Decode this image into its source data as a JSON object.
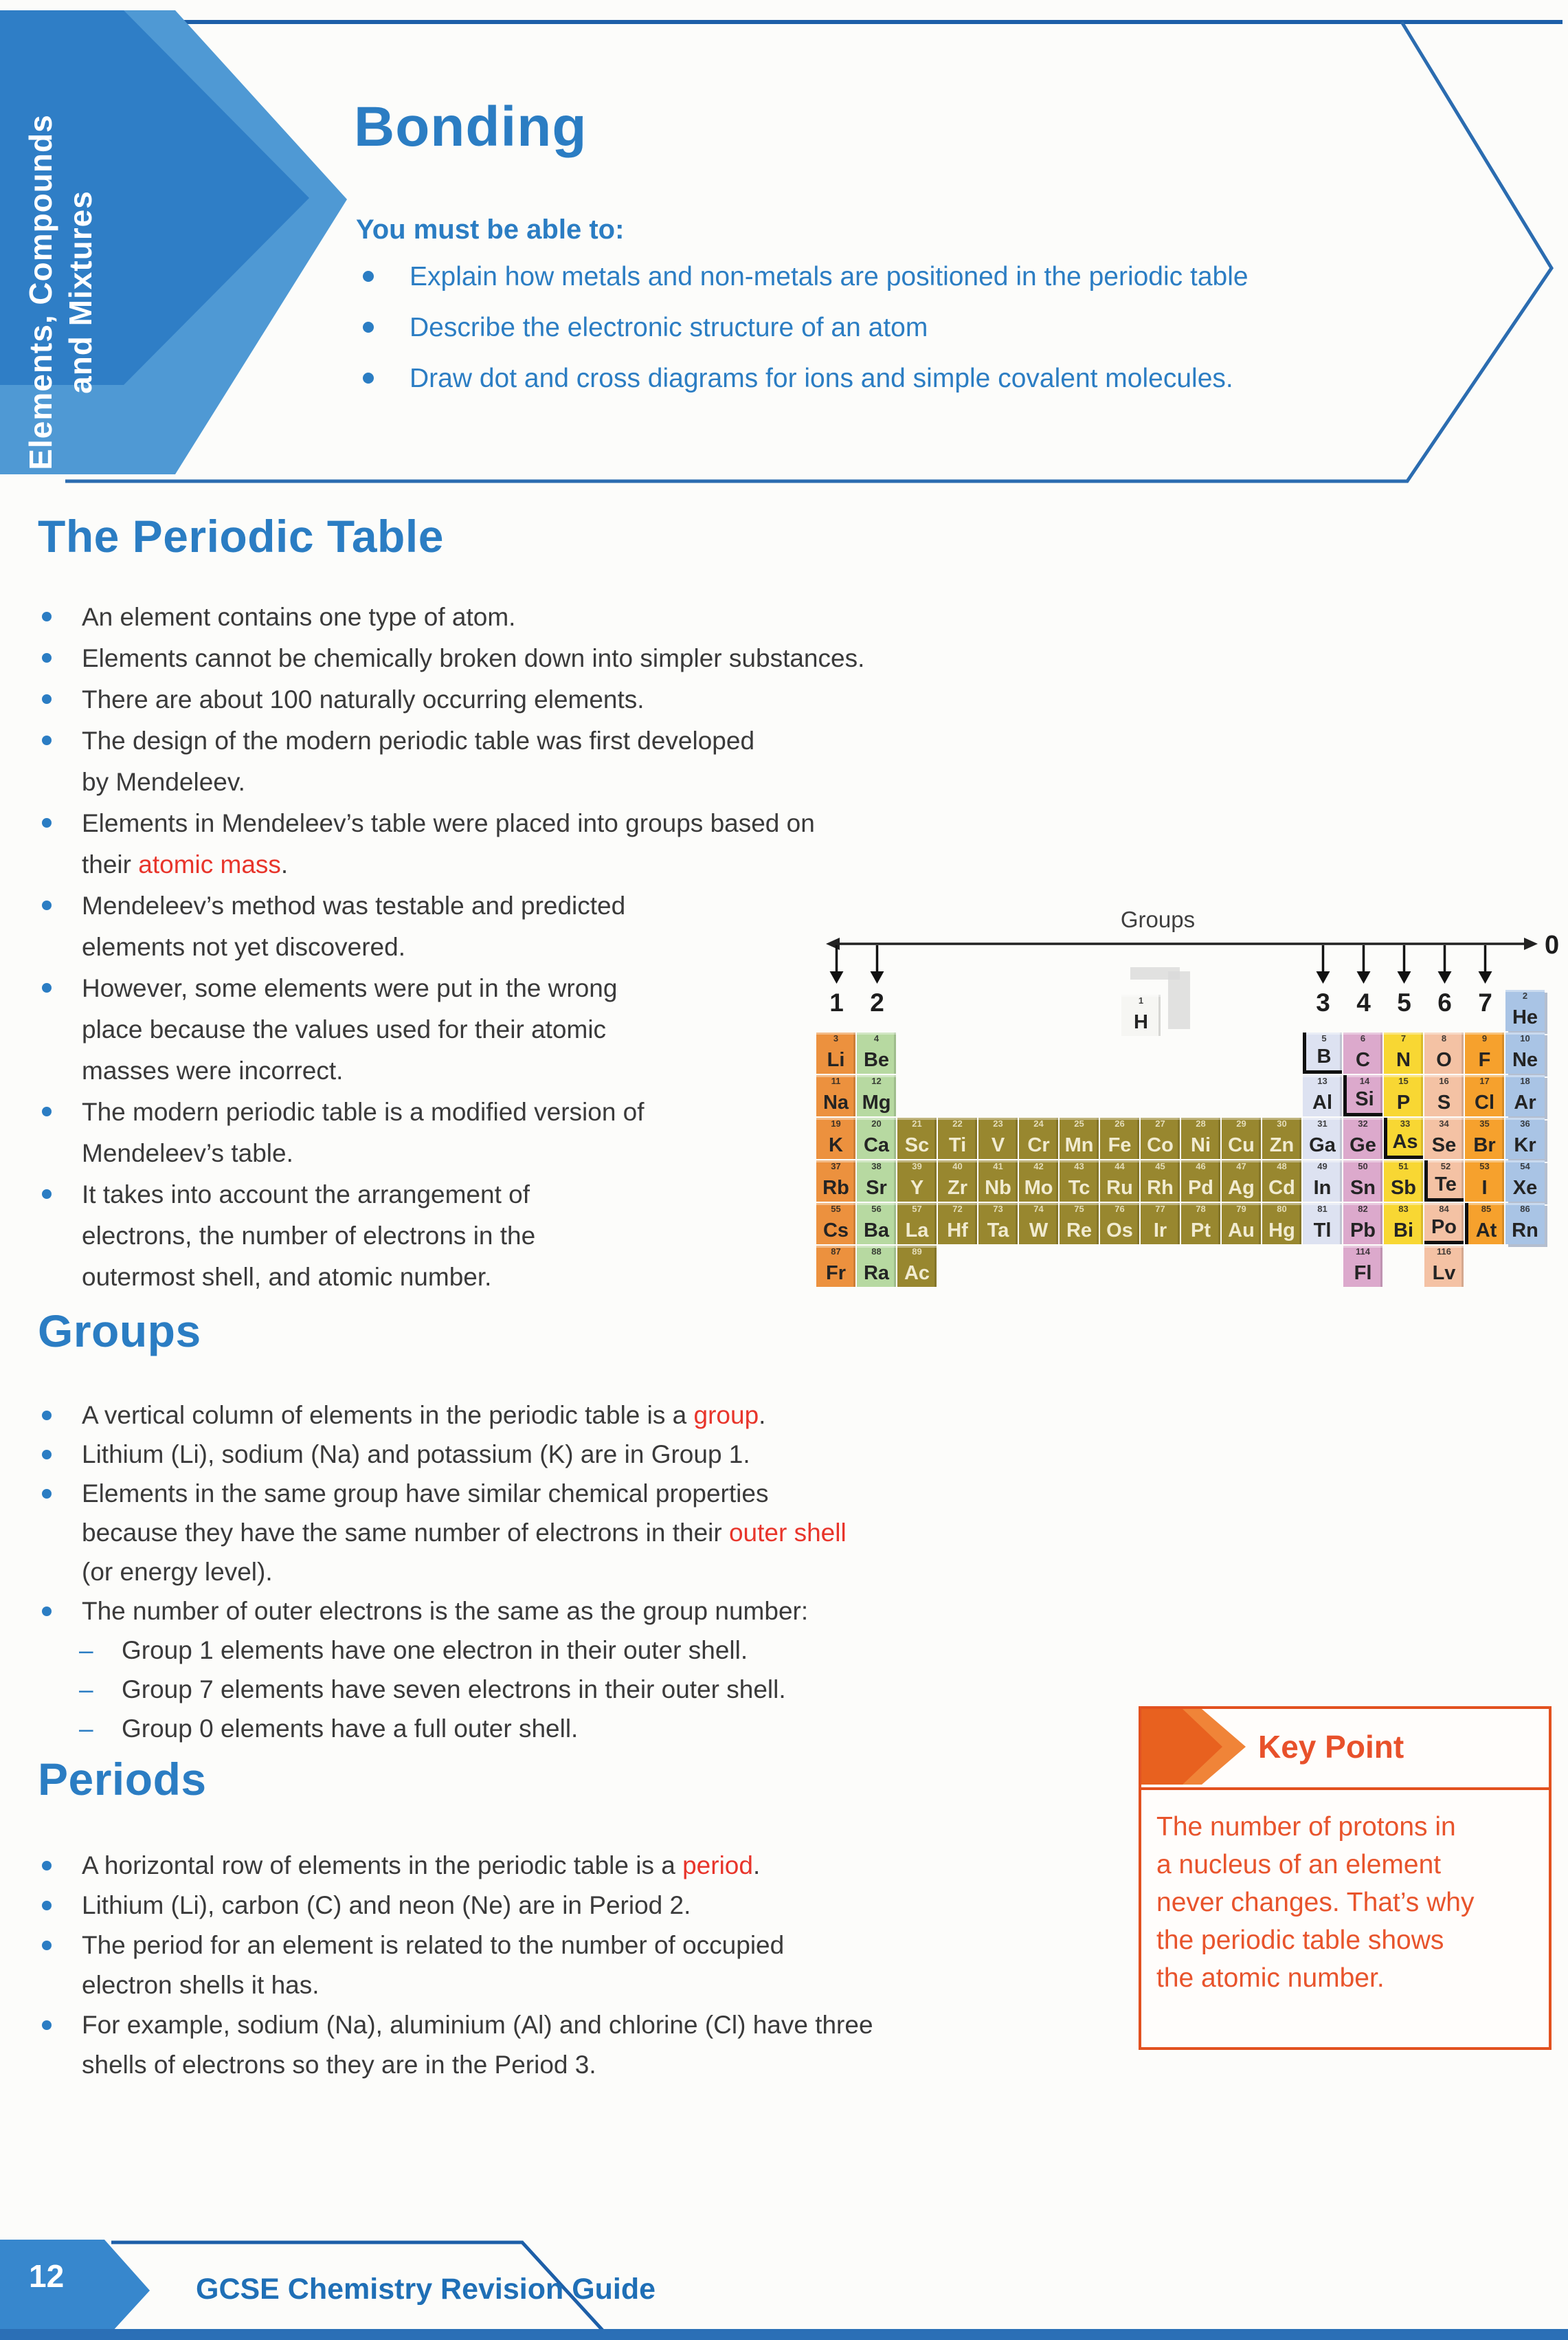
{
  "sidebar": {
    "title_line1": "Elements, Compounds",
    "title_line2": "and Mixtures"
  },
  "header": {
    "title": "Bonding",
    "lead": "You must be able to:",
    "objectives": [
      "Explain how metals and non-metals are positioned in the periodic table",
      "Describe the electronic structure of an atom",
      "Draw dot and cross diagrams for ions and simple covalent molecules."
    ]
  },
  "sections": {
    "periodic_table": {
      "heading": "The Periodic Table",
      "bullets": [
        {
          "m": "dot",
          "segs": [
            {
              "t": "An element contains one type of atom."
            }
          ]
        },
        {
          "m": "dot",
          "segs": [
            {
              "t": "Elements cannot be chemically broken down into simpler substances."
            }
          ]
        },
        {
          "m": "dot",
          "segs": [
            {
              "t": "There are about 100 naturally occurring elements."
            }
          ]
        },
        {
          "m": "dot",
          "segs": [
            {
              "t": "The design of the modern periodic table was first developed"
            },
            {
              "br": true
            },
            {
              "t": "by Mendeleev."
            }
          ]
        },
        {
          "m": "dot",
          "segs": [
            {
              "t": "Elements in Mendeleev’s table were placed into groups based on"
            },
            {
              "br": true
            },
            {
              "t": "their "
            },
            {
              "t": "atomic mass",
              "red": true
            },
            {
              "t": "."
            }
          ]
        },
        {
          "m": "dot",
          "segs": [
            {
              "t": "Mendeleev’s method was testable and predicted"
            },
            {
              "br": true
            },
            {
              "t": "elements not yet discovered."
            }
          ]
        },
        {
          "m": "dot",
          "segs": [
            {
              "t": "However, some elements were put in the wrong"
            },
            {
              "br": true
            },
            {
              "t": "place because the values used for their atomic"
            },
            {
              "br": true
            },
            {
              "t": "masses were incorrect."
            }
          ]
        },
        {
          "m": "dot",
          "segs": [
            {
              "t": "The modern periodic table is a modified version of"
            },
            {
              "br": true
            },
            {
              "t": "Mendeleev’s table."
            }
          ]
        },
        {
          "m": "dot",
          "segs": [
            {
              "t": "It takes into account the arrangement of"
            },
            {
              "br": true
            },
            {
              "t": "electrons, the number of electrons in the"
            },
            {
              "br": true
            },
            {
              "t": "outermost shell, and atomic number."
            }
          ]
        }
      ]
    },
    "groups": {
      "heading": "Groups",
      "bullets": [
        {
          "m": "dot",
          "segs": [
            {
              "t": "A vertical column of elements in the periodic table is a "
            },
            {
              "t": "group",
              "red": true
            },
            {
              "t": "."
            }
          ]
        },
        {
          "m": "dot",
          "segs": [
            {
              "t": "Lithium (Li), sodium (Na) and potassium (K) are in Group 1."
            }
          ]
        },
        {
          "m": "dot",
          "segs": [
            {
              "t": "Elements in the same group have similar chemical properties"
            },
            {
              "br": true
            },
            {
              "t": "because they have the same number of electrons in their "
            },
            {
              "t": "outer shell",
              "red": true
            },
            {
              "br": true
            },
            {
              "t": "(or energy level)."
            }
          ]
        },
        {
          "m": "dot",
          "segs": [
            {
              "t": "The number of outer electrons is the same as the group number:"
            }
          ]
        },
        {
          "m": "dash",
          "segs": [
            {
              "t": "Group 1 elements have one electron in their outer shell."
            }
          ]
        },
        {
          "m": "dash",
          "segs": [
            {
              "t": "Group 7 elements have seven electrons in their outer shell."
            }
          ]
        },
        {
          "m": "dash",
          "segs": [
            {
              "t": "Group 0 elements have a full outer shell."
            }
          ]
        }
      ]
    },
    "periods": {
      "heading": "Periods",
      "bullets": [
        {
          "m": "dot",
          "segs": [
            {
              "t": "A horizontal row of elements in the periodic table is a "
            },
            {
              "t": "period",
              "red": true
            },
            {
              "t": "."
            }
          ]
        },
        {
          "m": "dot",
          "segs": [
            {
              "t": "Lithium (Li), carbon (C) and neon (Ne) are in Period 2."
            }
          ]
        },
        {
          "m": "dot",
          "segs": [
            {
              "t": "The period for an element is related to the number of occupied"
            },
            {
              "br": true
            },
            {
              "t": "electron shells it has."
            }
          ]
        },
        {
          "m": "dot",
          "segs": [
            {
              "t": "For example, sodium (Na), aluminium (Al) and chlorine (Cl) have three"
            },
            {
              "br": true
            },
            {
              "t": "shells of electrons so they are in the Period 3."
            }
          ]
        }
      ]
    }
  },
  "key_point": {
    "title": "Key Point",
    "lines": [
      "The number of protons in",
      "a nucleus of an element",
      "never changes. That’s why",
      "the periodic table shows",
      "the atomic number."
    ]
  },
  "footer": {
    "page_number": "12",
    "book_title": "GCSE Chemistry Revision Guide"
  },
  "diagram": {
    "groups_label": "Groups",
    "group_numbers": [
      "1",
      "2",
      "3",
      "4",
      "5",
      "6",
      "7"
    ],
    "group_columns": [
      1,
      2,
      13,
      14,
      15,
      16,
      17
    ],
    "zero_label": "0",
    "colors": {
      "g1": "#ec913e",
      "g2": "#b7d9a1",
      "tm": "#98872f",
      "g13": "#dde2f1",
      "g14": "#dca9cc",
      "g15": "#f8d733",
      "g16": "#f4c2a4",
      "g17": "#f6a12d",
      "g18": "#a9c4e5",
      "h": "#f6f6f3"
    },
    "hydrogen": {
      "symbol": "H",
      "number": "1"
    },
    "elements": [
      {
        "s": "He",
        "n": "2",
        "r": 1,
        "c": 18,
        "g": "g18"
      },
      {
        "s": "Li",
        "n": "3",
        "r": 2,
        "c": 1,
        "g": "g1"
      },
      {
        "s": "Be",
        "n": "4",
        "r": 2,
        "c": 2,
        "g": "g2"
      },
      {
        "s": "B",
        "n": "5",
        "r": 2,
        "c": 13,
        "g": "g13",
        "st": [
          "l",
          "b"
        ]
      },
      {
        "s": "C",
        "n": "6",
        "r": 2,
        "c": 14,
        "g": "g14"
      },
      {
        "s": "N",
        "n": "7",
        "r": 2,
        "c": 15,
        "g": "g15"
      },
      {
        "s": "O",
        "n": "8",
        "r": 2,
        "c": 16,
        "g": "g16"
      },
      {
        "s": "F",
        "n": "9",
        "r": 2,
        "c": 17,
        "g": "g17"
      },
      {
        "s": "Ne",
        "n": "10",
        "r": 2,
        "c": 18,
        "g": "g18"
      },
      {
        "s": "Na",
        "n": "11",
        "r": 3,
        "c": 1,
        "g": "g1"
      },
      {
        "s": "Mg",
        "n": "12",
        "r": 3,
        "c": 2,
        "g": "g2"
      },
      {
        "s": "Al",
        "n": "13",
        "r": 3,
        "c": 13,
        "g": "g13"
      },
      {
        "s": "Si",
        "n": "14",
        "r": 3,
        "c": 14,
        "g": "g14",
        "st": [
          "l",
          "b"
        ]
      },
      {
        "s": "P",
        "n": "15",
        "r": 3,
        "c": 15,
        "g": "g15"
      },
      {
        "s": "S",
        "n": "16",
        "r": 3,
        "c": 16,
        "g": "g16"
      },
      {
        "s": "Cl",
        "n": "17",
        "r": 3,
        "c": 17,
        "g": "g17"
      },
      {
        "s": "Ar",
        "n": "18",
        "r": 3,
        "c": 18,
        "g": "g18"
      },
      {
        "s": "K",
        "n": "19",
        "r": 4,
        "c": 1,
        "g": "g1"
      },
      {
        "s": "Ca",
        "n": "20",
        "r": 4,
        "c": 2,
        "g": "g2"
      },
      {
        "s": "Sc",
        "n": "21",
        "r": 4,
        "c": 3,
        "g": "tm"
      },
      {
        "s": "Ti",
        "n": "22",
        "r": 4,
        "c": 4,
        "g": "tm"
      },
      {
        "s": "V",
        "n": "23",
        "r": 4,
        "c": 5,
        "g": "tm"
      },
      {
        "s": "Cr",
        "n": "24",
        "r": 4,
        "c": 6,
        "g": "tm"
      },
      {
        "s": "Mn",
        "n": "25",
        "r": 4,
        "c": 7,
        "g": "tm"
      },
      {
        "s": "Fe",
        "n": "26",
        "r": 4,
        "c": 8,
        "g": "tm"
      },
      {
        "s": "Co",
        "n": "27",
        "r": 4,
        "c": 9,
        "g": "tm"
      },
      {
        "s": "Ni",
        "n": "28",
        "r": 4,
        "c": 10,
        "g": "tm"
      },
      {
        "s": "Cu",
        "n": "29",
        "r": 4,
        "c": 11,
        "g": "tm"
      },
      {
        "s": "Zn",
        "n": "30",
        "r": 4,
        "c": 12,
        "g": "tm"
      },
      {
        "s": "Ga",
        "n": "31",
        "r": 4,
        "c": 13,
        "g": "g13"
      },
      {
        "s": "Ge",
        "n": "32",
        "r": 4,
        "c": 14,
        "g": "g14"
      },
      {
        "s": "As",
        "n": "33",
        "r": 4,
        "c": 15,
        "g": "g15",
        "st": [
          "l",
          "b"
        ]
      },
      {
        "s": "Se",
        "n": "34",
        "r": 4,
        "c": 16,
        "g": "g16"
      },
      {
        "s": "Br",
        "n": "35",
        "r": 4,
        "c": 17,
        "g": "g17"
      },
      {
        "s": "Kr",
        "n": "36",
        "r": 4,
        "c": 18,
        "g": "g18"
      },
      {
        "s": "Rb",
        "n": "37",
        "r": 5,
        "c": 1,
        "g": "g1"
      },
      {
        "s": "Sr",
        "n": "38",
        "r": 5,
        "c": 2,
        "g": "g2"
      },
      {
        "s": "Y",
        "n": "39",
        "r": 5,
        "c": 3,
        "g": "tm"
      },
      {
        "s": "Zr",
        "n": "40",
        "r": 5,
        "c": 4,
        "g": "tm"
      },
      {
        "s": "Nb",
        "n": "41",
        "r": 5,
        "c": 5,
        "g": "tm"
      },
      {
        "s": "Mo",
        "n": "42",
        "r": 5,
        "c": 6,
        "g": "tm"
      },
      {
        "s": "Tc",
        "n": "43",
        "r": 5,
        "c": 7,
        "g": "tm"
      },
      {
        "s": "Ru",
        "n": "44",
        "r": 5,
        "c": 8,
        "g": "tm"
      },
      {
        "s": "Rh",
        "n": "45",
        "r": 5,
        "c": 9,
        "g": "tm"
      },
      {
        "s": "Pd",
        "n": "46",
        "r": 5,
        "c": 10,
        "g": "tm"
      },
      {
        "s": "Ag",
        "n": "47",
        "r": 5,
        "c": 11,
        "g": "tm"
      },
      {
        "s": "Cd",
        "n": "48",
        "r": 5,
        "c": 12,
        "g": "tm"
      },
      {
        "s": "In",
        "n": "49",
        "r": 5,
        "c": 13,
        "g": "g13"
      },
      {
        "s": "Sn",
        "n": "50",
        "r": 5,
        "c": 14,
        "g": "g14"
      },
      {
        "s": "Sb",
        "n": "51",
        "r": 5,
        "c": 15,
        "g": "g15"
      },
      {
        "s": "Te",
        "n": "52",
        "r": 5,
        "c": 16,
        "g": "g16",
        "st": [
          "l",
          "b"
        ]
      },
      {
        "s": "I",
        "n": "53",
        "r": 5,
        "c": 17,
        "g": "g17"
      },
      {
        "s": "Xe",
        "n": "54",
        "r": 5,
        "c": 18,
        "g": "g18"
      },
      {
        "s": "Cs",
        "n": "55",
        "r": 6,
        "c": 1,
        "g": "g1"
      },
      {
        "s": "Ba",
        "n": "56",
        "r": 6,
        "c": 2,
        "g": "g2"
      },
      {
        "s": "La",
        "n": "57",
        "r": 6,
        "c": 3,
        "g": "tm"
      },
      {
        "s": "Hf",
        "n": "72",
        "r": 6,
        "c": 4,
        "g": "tm"
      },
      {
        "s": "Ta",
        "n": "73",
        "r": 6,
        "c": 5,
        "g": "tm"
      },
      {
        "s": "W",
        "n": "74",
        "r": 6,
        "c": 6,
        "g": "tm"
      },
      {
        "s": "Re",
        "n": "75",
        "r": 6,
        "c": 7,
        "g": "tm"
      },
      {
        "s": "Os",
        "n": "76",
        "r": 6,
        "c": 8,
        "g": "tm"
      },
      {
        "s": "Ir",
        "n": "77",
        "r": 6,
        "c": 9,
        "g": "tm"
      },
      {
        "s": "Pt",
        "n": "78",
        "r": 6,
        "c": 10,
        "g": "tm"
      },
      {
        "s": "Au",
        "n": "79",
        "r": 6,
        "c": 11,
        "g": "tm"
      },
      {
        "s": "Hg",
        "n": "80",
        "r": 6,
        "c": 12,
        "g": "tm"
      },
      {
        "s": "Tl",
        "n": "81",
        "r": 6,
        "c": 13,
        "g": "g13"
      },
      {
        "s": "Pb",
        "n": "82",
        "r": 6,
        "c": 14,
        "g": "g14"
      },
      {
        "s": "Bi",
        "n": "83",
        "r": 6,
        "c": 15,
        "g": "g15"
      },
      {
        "s": "Po",
        "n": "84",
        "r": 6,
        "c": 16,
        "g": "g16",
        "st": [
          "b"
        ]
      },
      {
        "s": "At",
        "n": "85",
        "r": 6,
        "c": 17,
        "g": "g17",
        "st": [
          "l"
        ]
      },
      {
        "s": "Rn",
        "n": "86",
        "r": 6,
        "c": 18,
        "g": "g18"
      },
      {
        "s": "Fr",
        "n": "87",
        "r": 7,
        "c": 1,
        "g": "g1"
      },
      {
        "s": "Ra",
        "n": "88",
        "r": 7,
        "c": 2,
        "g": "g2"
      },
      {
        "s": "Ac",
        "n": "89",
        "r": 7,
        "c": 3,
        "g": "tm"
      },
      {
        "s": "Fl",
        "n": "114",
        "r": 7,
        "c": 14,
        "g": "g14"
      },
      {
        "s": "Lv",
        "n": "116",
        "r": 7,
        "c": 16,
        "g": "g16"
      }
    ]
  }
}
